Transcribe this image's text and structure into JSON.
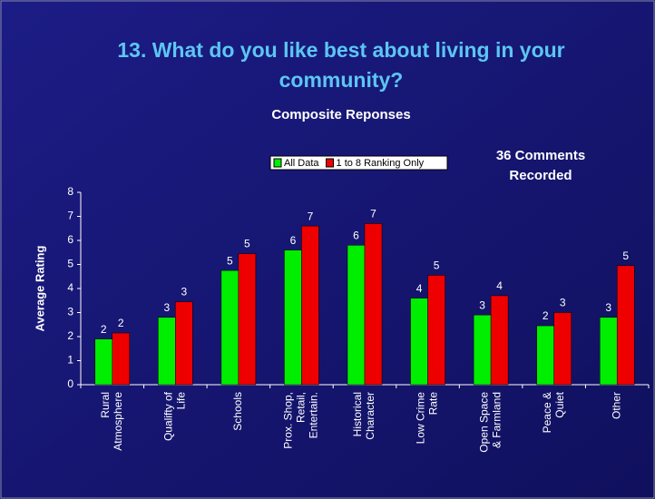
{
  "chart_data": {
    "type": "bar",
    "title": [
      "13. What do you like best about living in your",
      "community?"
    ],
    "subtitle": "Composite Reponses",
    "annotation": [
      "36 Comments",
      "Recorded"
    ],
    "y_label": "Average Rating",
    "categories": [
      [
        "Rural",
        "Atmosphere"
      ],
      [
        "Qualifty of",
        "Life"
      ],
      [
        "Schools"
      ],
      [
        "Prox. Shop,",
        "Retail,",
        "Entertain."
      ],
      [
        "Historical",
        "Character"
      ],
      [
        "Low Crime",
        "Rate"
      ],
      [
        "Open Space",
        "& Farmland"
      ],
      [
        "Peace &",
        "Quiet"
      ],
      [
        "Other"
      ]
    ],
    "series": [
      {
        "name": "All Data",
        "color": "#00ee00",
        "values": [
          1.9,
          2.8,
          4.75,
          5.6,
          5.8,
          3.6,
          2.9,
          2.45,
          2.8
        ],
        "value_labels": [
          "2",
          "3",
          "5",
          "6",
          "6",
          "4",
          "3",
          "2",
          "3"
        ]
      },
      {
        "name": "1 to 8 Ranking Only",
        "color": "#ee0000",
        "values": [
          2.15,
          3.45,
          5.45,
          6.6,
          6.7,
          4.55,
          3.7,
          3.0,
          4.95
        ],
        "value_labels": [
          "2",
          "3",
          "5",
          "7",
          "7",
          "5",
          "4",
          "3",
          "5"
        ]
      }
    ],
    "ylim": [
      0,
      8
    ],
    "yticks": [
      0,
      1,
      2,
      3,
      4,
      5,
      6,
      7,
      8
    ],
    "grid": false
  }
}
